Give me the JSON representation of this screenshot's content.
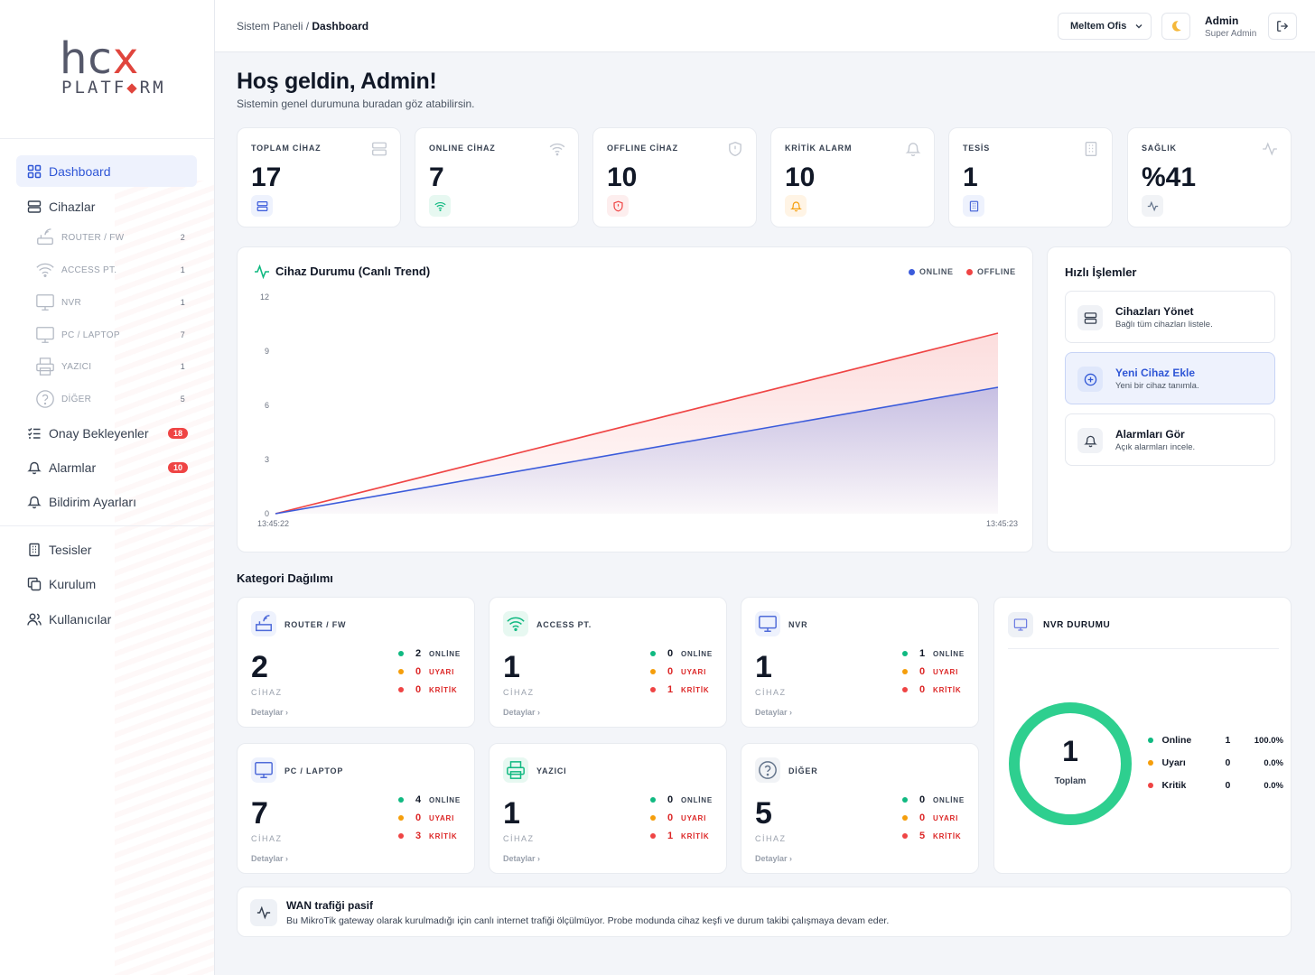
{
  "logo": {
    "hcx_part1": "hc",
    "hcx_part2": "x",
    "plat_part1": "PLATF",
    "plat_diamond": "◆",
    "plat_part2": "RM"
  },
  "sidebar": {
    "items": [
      {
        "label": "Dashboard",
        "icon": "grid-icon"
      },
      {
        "label": "Cihazlar",
        "icon": "server-icon"
      },
      {
        "label": "Onay Bekleyenler",
        "icon": "list-check-icon",
        "badge": "18"
      },
      {
        "label": "Alarmlar",
        "icon": "bell-icon",
        "badge": "10"
      },
      {
        "label": "Bildirim Ayarları",
        "icon": "bell-settings-icon"
      },
      {
        "label": "Tesisler",
        "icon": "building-icon"
      },
      {
        "label": "Kurulum",
        "icon": "copy-icon"
      },
      {
        "label": "Kullanıcılar",
        "icon": "users-icon"
      }
    ],
    "subitems": [
      {
        "label": "ROUTER / FW",
        "count": "2",
        "icon": "router-icon"
      },
      {
        "label": "ACCESS PT.",
        "count": "1",
        "icon": "wifi-icon"
      },
      {
        "label": "NVR",
        "count": "1",
        "icon": "monitor-icon"
      },
      {
        "label": "PC / LAPTOP",
        "count": "7",
        "icon": "laptop-icon"
      },
      {
        "label": "YAZICI",
        "count": "1",
        "icon": "printer-icon"
      },
      {
        "label": "DİĞER",
        "count": "5",
        "icon": "help-icon"
      }
    ]
  },
  "topbar": {
    "crumb_parent": "Sistem Paneli",
    "crumb_sep": " / ",
    "crumb_current": "Dashboard",
    "office": "Meltem Ofis",
    "user_name": "Admin",
    "user_role": "Super Admin"
  },
  "header": {
    "title": "Hoş geldin, Admin!",
    "subtitle": "Sistemin genel durumuna buradan göz atabilirsin."
  },
  "stats": [
    {
      "label": "TOPLAM CİHAZ",
      "value": "17",
      "color": "#3b5bdb",
      "bg": "#eef2fd"
    },
    {
      "label": "ONLINE CİHAZ",
      "value": "7",
      "color": "#10b981",
      "bg": "#e7f8f1"
    },
    {
      "label": "OFFLINE CİHAZ",
      "value": "10",
      "color": "#ef4444",
      "bg": "#fdeeee"
    },
    {
      "label": "KRİTİK ALARM",
      "value": "10",
      "color": "#f59e0b",
      "bg": "#fff4e5"
    },
    {
      "label": "TESİS",
      "value": "1",
      "color": "#4f6bd9",
      "bg": "#eef2fd"
    },
    {
      "label": "SAĞLIK",
      "value": "%41",
      "color": "#64748b",
      "bg": "#f1f3f6"
    }
  ],
  "chart": {
    "title": "Cihaz Durumu (Canlı Trend)",
    "legend_online": "ONLINE",
    "legend_offline": "OFFLINE"
  },
  "chart_data": {
    "type": "area",
    "title": "Cihaz Durumu (Canlı Trend)",
    "x": [
      "13:45:22",
      "13:45:23"
    ],
    "series": [
      {
        "name": "ONLINE",
        "color": "#3b5bdb",
        "values": [
          0,
          7
        ]
      },
      {
        "name": "OFFLINE",
        "color": "#ef4444",
        "values": [
          0,
          10
        ]
      }
    ],
    "yticks": [
      0,
      3,
      6,
      9,
      12
    ],
    "ylim": [
      0,
      12
    ],
    "legend": "top-right",
    "grid": false
  },
  "quick": {
    "title": "Hızlı İşlemler",
    "items": [
      {
        "title": "Cihazları Yönet",
        "sub": "Bağlı tüm cihazları listele."
      },
      {
        "title": "Yeni Cihaz Ekle",
        "sub": "Yeni bir cihaz tanımla."
      },
      {
        "title": "Alarmları Gör",
        "sub": "Açık alarmları incele."
      }
    ]
  },
  "categories": {
    "title": "Kategori Dağılımı",
    "unit": "CİHAZ",
    "details": "Detaylar ›",
    "labels": {
      "online": "ONLİNE",
      "warn": "UYARI",
      "crit": "KRİTİK"
    },
    "items": [
      {
        "name": "ROUTER / FW",
        "total": "2",
        "online": "2",
        "warn": "0",
        "crit": "0",
        "icon": "router-icon"
      },
      {
        "name": "ACCESS PT.",
        "total": "1",
        "online": "0",
        "warn": "0",
        "crit": "1",
        "icon": "wifi-icon"
      },
      {
        "name": "NVR",
        "total": "1",
        "online": "1",
        "warn": "0",
        "crit": "0",
        "icon": "monitor-icon"
      },
      {
        "name": "PC / LAPTOP",
        "total": "7",
        "online": "4",
        "warn": "0",
        "crit": "3",
        "icon": "laptop-icon"
      },
      {
        "name": "YAZICI",
        "total": "1",
        "online": "0",
        "warn": "0",
        "crit": "1",
        "icon": "printer-icon"
      },
      {
        "name": "DİĞER",
        "total": "5",
        "online": "0",
        "warn": "0",
        "crit": "5",
        "icon": "help-icon"
      }
    ]
  },
  "nvr": {
    "title": "NVR DURUMU",
    "total": "1",
    "total_label": "Toplam",
    "rows": [
      {
        "name": "Online",
        "count": "1",
        "pct": "100.0%",
        "color": "#10b981"
      },
      {
        "name": "Uyarı",
        "count": "0",
        "pct": "0.0%",
        "color": "#f59e0b"
      },
      {
        "name": "Kritik",
        "count": "0",
        "pct": "0.0%",
        "color": "#ef4444"
      }
    ],
    "online_fraction": 1.0
  },
  "wan": {
    "title": "WAN trafiği pasif",
    "text": "Bu MikroTik gateway olarak kurulmadığı için canlı internet trafiği ölçülmüyor. Probe modunda cihaz keşfi ve durum takibi çalışmaya devam eder."
  }
}
